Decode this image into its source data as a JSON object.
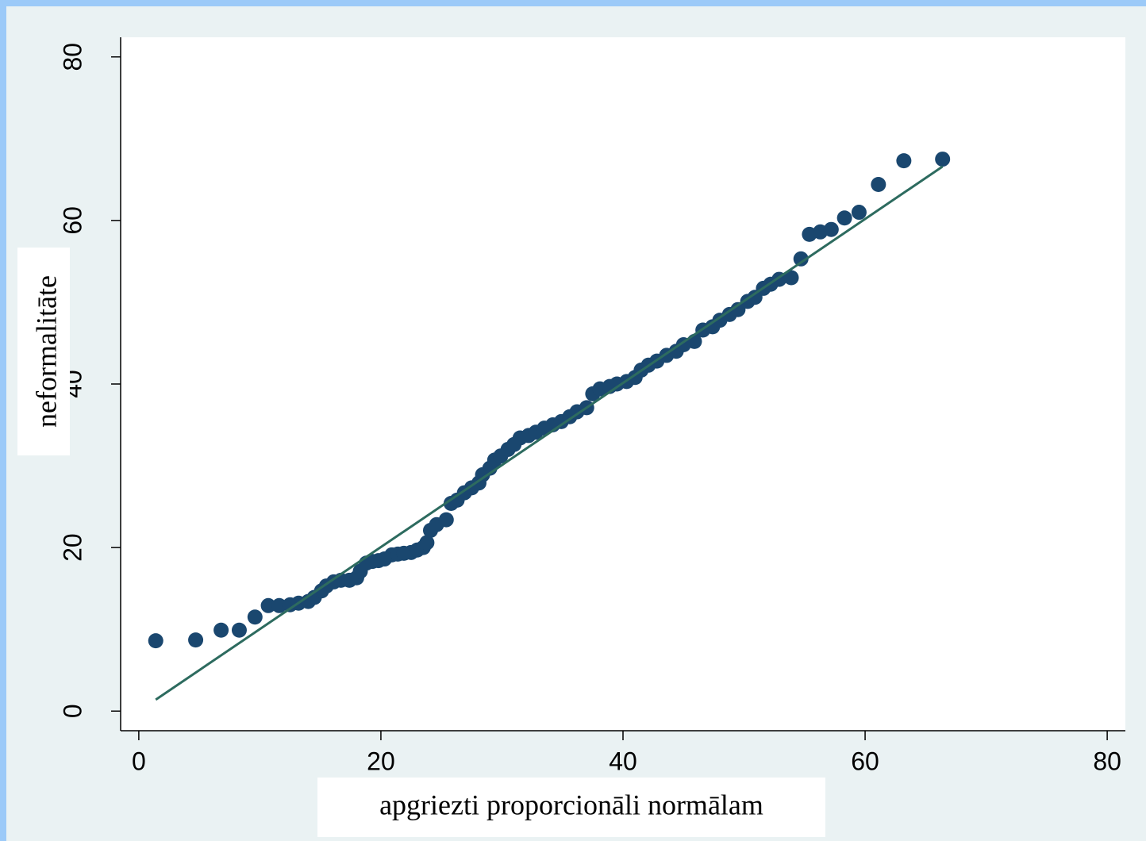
{
  "chart_data": {
    "type": "scatter",
    "x_label": "apgriezti proporcionāli normālam",
    "y_label": "neformalitāte",
    "xlim": [
      -1.5,
      81.5
    ],
    "ylim": [
      -2.4,
      82.4
    ],
    "xticks": [
      0,
      20,
      40,
      60,
      80
    ],
    "yticks": [
      0,
      20,
      40,
      60,
      80
    ],
    "grid": false,
    "series": [
      {
        "type": "scatter",
        "color": "#1a476f",
        "x": [
          1.4,
          4.7,
          6.8,
          8.3,
          9.6,
          10.7,
          11.6,
          12.5,
          13.2,
          14.0,
          14.5,
          15.1,
          15.5,
          16.1,
          16.7,
          17.4,
          18.0,
          18.3,
          18.8,
          19.3,
          19.8,
          20.3,
          20.9,
          21.4,
          21.9,
          22.5,
          23.0,
          23.5,
          23.8,
          24.1,
          24.6,
          25.4,
          25.8,
          26.3,
          26.9,
          27.5,
          28.1,
          28.4,
          29.0,
          29.4,
          29.9,
          30.5,
          31.0,
          31.5,
          32.2,
          32.8,
          33.5,
          34.2,
          34.9,
          35.6,
          36.2,
          37.0,
          37.5,
          38.1,
          38.9,
          39.5,
          40.3,
          41.0,
          41.5,
          42.1,
          42.8,
          43.6,
          44.4,
          45.0,
          45.9,
          46.6,
          47.4,
          48.0,
          48.8,
          49.5,
          50.3,
          50.9,
          51.6,
          52.2,
          52.9,
          53.9,
          54.7,
          55.4,
          56.3,
          57.2,
          58.3,
          59.5,
          61.1,
          63.2,
          66.4
        ],
        "values": [
          8.6,
          8.7,
          9.9,
          9.9,
          11.5,
          12.9,
          12.9,
          13.0,
          13.2,
          13.4,
          13.9,
          14.7,
          15.3,
          15.8,
          16.0,
          16.0,
          16.3,
          17.1,
          18.1,
          18.3,
          18.4,
          18.6,
          19.1,
          19.2,
          19.3,
          19.4,
          19.7,
          20.0,
          20.6,
          22.1,
          22.8,
          23.4,
          25.4,
          25.8,
          26.7,
          27.3,
          27.9,
          28.9,
          29.7,
          30.7,
          31.2,
          32.0,
          32.6,
          33.4,
          33.7,
          34.1,
          34.6,
          35.0,
          35.4,
          36.0,
          36.6,
          37.1,
          38.8,
          39.4,
          39.7,
          40.0,
          40.3,
          40.8,
          41.7,
          42.3,
          42.8,
          43.5,
          44.0,
          44.8,
          45.2,
          46.6,
          47.0,
          47.8,
          48.5,
          49.1,
          50.1,
          50.6,
          51.7,
          52.2,
          52.8,
          53.0,
          55.3,
          58.3,
          58.6,
          58.9,
          60.3,
          61.0,
          64.4,
          67.3,
          67.5
        ]
      },
      {
        "type": "line",
        "color": "#2d6b5f",
        "x": [
          1.4,
          66.4
        ],
        "values": [
          1.4,
          66.6
        ]
      }
    ]
  }
}
